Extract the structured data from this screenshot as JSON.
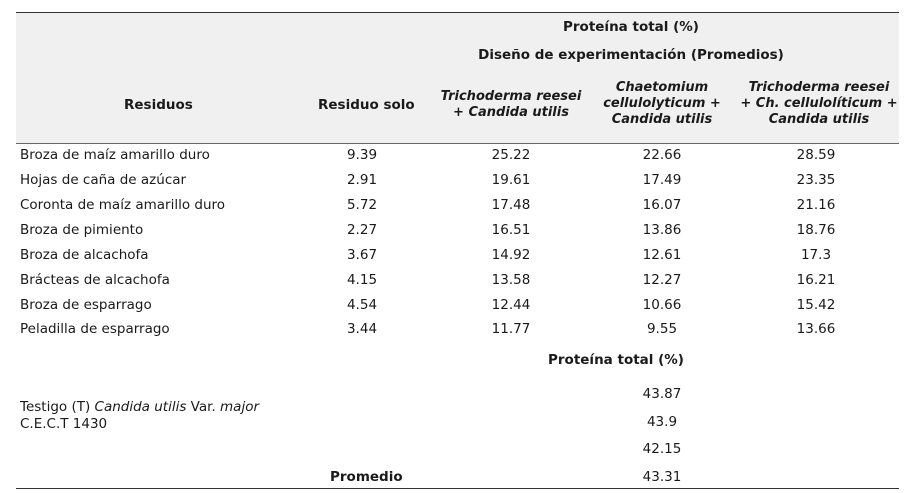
{
  "header": {
    "group_title": "Proteína total (%)",
    "design_title": "Diseño de experimentación (Promedios)",
    "col_residuos": "Residuos",
    "col_residuo_solo": "Residuo solo",
    "col_tr_cu_l1": "Trichoderma reesei",
    "col_tr_cu_l2": "+ Candida utilis",
    "col_ch_cu_l1": "Chaetomium",
    "col_ch_cu_l2": "cellulolyticum +",
    "col_ch_cu_l3": "Candida utilis",
    "col_all_l1": "Trichoderma reesei",
    "col_all_l2": "+ Ch. cellulolíticum +",
    "col_all_l3": "Candida utilis"
  },
  "rows": [
    {
      "name": "Broza de maíz amarillo duro",
      "solo": "9.39",
      "tr": "25.22",
      "ch": "22.66",
      "all": "28.59"
    },
    {
      "name": "Hojas de caña de azúcar",
      "solo": "2.91",
      "tr": "19.61",
      "ch": "17.49",
      "all": "23.35"
    },
    {
      "name": "Coronta de maíz amarillo duro",
      "solo": "5.72",
      "tr": "17.48",
      "ch": "16.07",
      "all": "21.16"
    },
    {
      "name": "Broza de pimiento",
      "solo": "2.27",
      "tr": "16.51",
      "ch": "13.86",
      "all": "18.76"
    },
    {
      "name": "Broza de alcachofa",
      "solo": "3.67",
      "tr": "14.92",
      "ch": "12.61",
      "all": "17.3"
    },
    {
      "name": "Brácteas de alcachofa",
      "solo": "4.15",
      "tr": "13.58",
      "ch": "12.27",
      "all": "16.21"
    },
    {
      "name": "Broza de esparrago",
      "solo": "4.54",
      "tr": "12.44",
      "ch": "10.66",
      "all": "15.42"
    },
    {
      "name": "Peladilla de esparrago",
      "solo": "3.44",
      "tr": "11.77",
      "ch": "9.55",
      "all": "13.66"
    }
  ],
  "control": {
    "subtitle": "Proteína total (%)",
    "label_pre": "Testigo (T) ",
    "label_italic1": "Candida utilis",
    "label_mid": " Var. ",
    "label_italic2": "major",
    "label_line2": "C.E.C.T 1430",
    "values": [
      "43.87",
      "43.9",
      "42.15"
    ],
    "avg_label": "Promedio",
    "avg_value": "43.31"
  }
}
